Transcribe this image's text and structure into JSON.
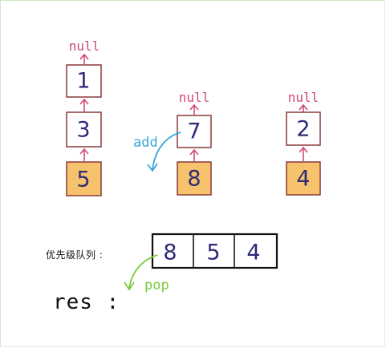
{
  "lists": [
    {
      "null_label": "null",
      "nodes": [
        "1",
        "3",
        "5"
      ]
    },
    {
      "null_label": "null",
      "nodes": [
        "7",
        "8"
      ]
    },
    {
      "null_label": "null",
      "nodes": [
        "2",
        "4"
      ]
    }
  ],
  "add_label": "add",
  "priority_queue": {
    "label": "优先级队列 :",
    "values": [
      "8",
      "5",
      "4"
    ],
    "pop_label": "pop"
  },
  "result": {
    "label": "res :"
  },
  "colors": {
    "node_border": "#8a3a3a",
    "head_fill": "#f6c26b",
    "pointer_arrow": "#d2467e",
    "add_arrow": "#3aa8d8",
    "pop_arrow": "#7ccc3a",
    "digit": "#2e2b78"
  }
}
